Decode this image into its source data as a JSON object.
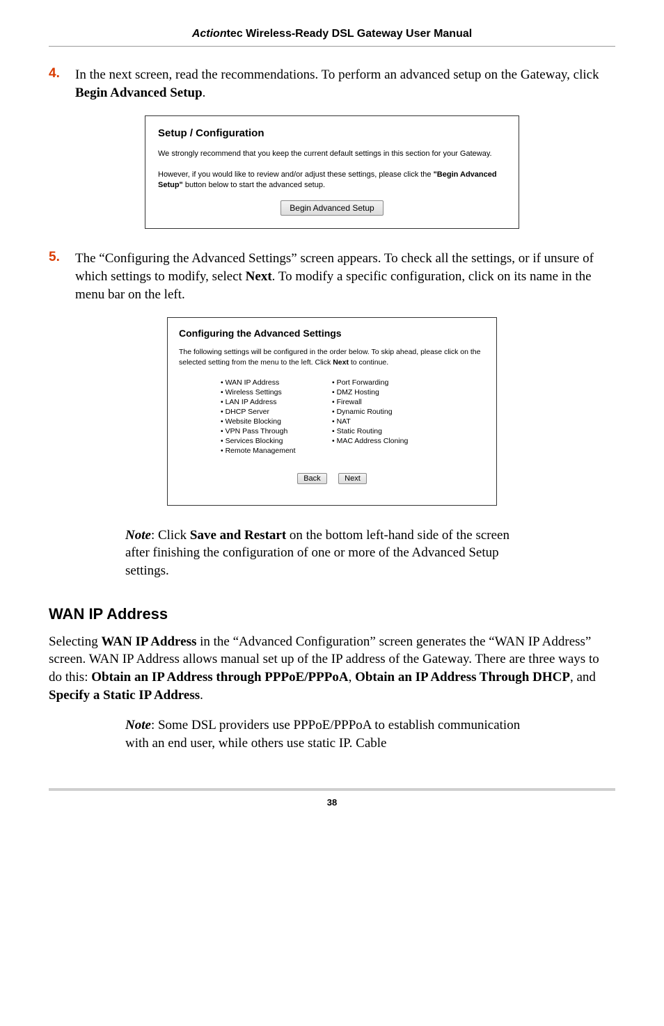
{
  "header": {
    "brand_italic": "Action",
    "brand_rest": "tec",
    "title_rest": " Wireless-Ready DSL Gateway User Manual"
  },
  "step4": {
    "num": "4.",
    "text_a": "In the next screen, read the recommendations. To perform an advanced setup on the Gateway, click ",
    "bold": "Begin Advanced Setup",
    "text_b": "."
  },
  "ss1": {
    "title": "Setup / Configuration",
    "p1": "We strongly recommend that you keep the current default settings in this section for your Gateway.",
    "p2a": "However, if you would like to review and/or adjust these settings, please click the ",
    "p2bold": "\"Begin Advanced Setup\"",
    "p2b": " button below to start the advanced setup.",
    "btn": "Begin Advanced Setup"
  },
  "step5": {
    "num": "5.",
    "text_a": "The “Configuring the Advanced Settings” screen appears. To check all the settings, or if unsure of which settings to modify, select ",
    "bold1": "Next",
    "text_b": ". To modify a specific configuration, click on its name in the menu bar on the left."
  },
  "ss2": {
    "title": "Configuring the Advanced Settings",
    "p1a": "The following settings will be configured in the order below. To skip ahead, please click on the selected setting from the menu to the left. Click ",
    "p1bold": "Next",
    "p1b": " to continue.",
    "left": [
      "WAN IP Address",
      "Wireless Settings",
      "LAN IP Address",
      "DHCP Server",
      "Website Blocking",
      "VPN Pass Through",
      "Services Blocking",
      "Remote Management"
    ],
    "right": [
      "Port Forwarding",
      "DMZ Hosting",
      "Firewall",
      "Dynamic Routing",
      "NAT",
      "Static Routing",
      "MAC Address Cloning"
    ],
    "btn_back": "Back",
    "btn_next": "Next"
  },
  "note1": {
    "label": "Note",
    "a": ": Click ",
    "bold": "Save and Restart",
    "b": " on the bottom left-hand side of the screen after finishing the configuration of one or more of the Advanced Setup settings."
  },
  "h2": "WAN IP Address",
  "mainpara": {
    "a": "Selecting ",
    "b1": "WAN IP Address",
    "b": " in the “Advanced Configuration” screen generates the “WAN IP Address” screen. WAN IP Address allows manual set up of the IP address of the Gateway. There are three ways to do this: ",
    "b2": "Obtain an IP Address through PPPoE/PPPoA",
    "c": ", ",
    "b3": "Obtain an IP Address Through DHCP",
    "d": ", and ",
    "b4": "Specify a Static IP Address",
    "e": "."
  },
  "note2": {
    "label": "Note",
    "text": ": Some DSL providers use PPPoE/PPPoA to establish communication with an end user, while others use static IP. Cable"
  },
  "page_num": "38"
}
